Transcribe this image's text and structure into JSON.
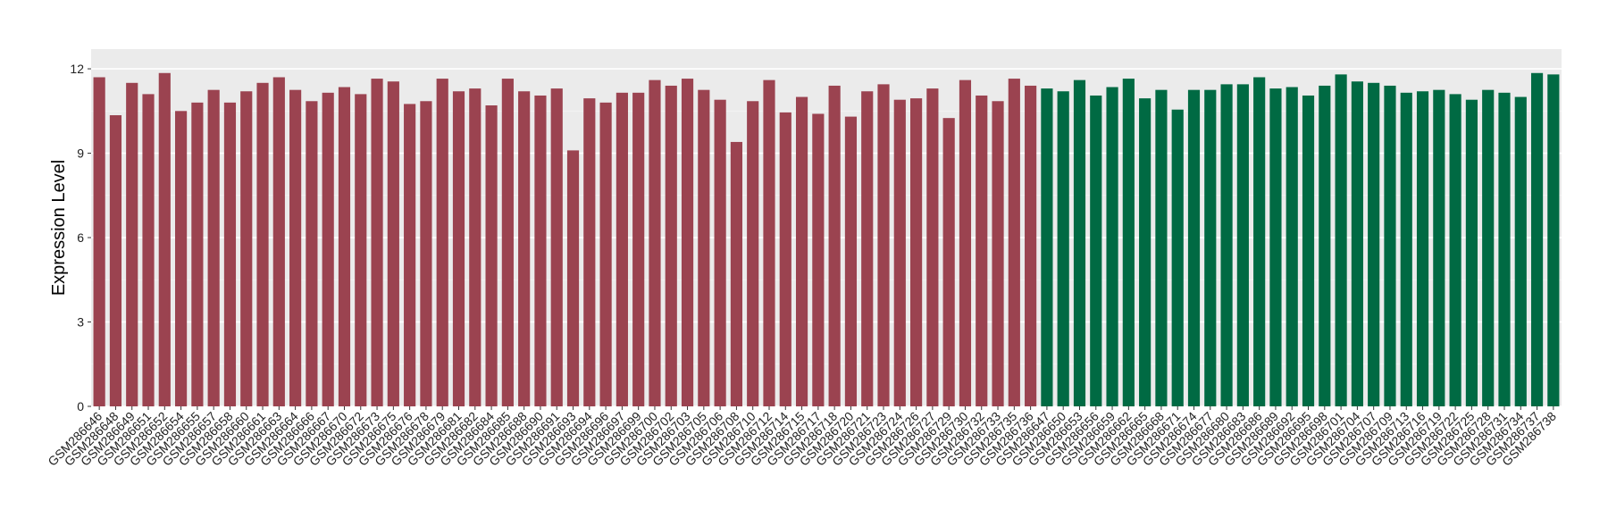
{
  "chart_data": {
    "type": "bar",
    "title": "",
    "xlabel": "",
    "ylabel": "Expression Level",
    "ylim": [
      0,
      12.7
    ],
    "yticks": [
      0,
      3,
      6,
      9,
      12
    ],
    "grid": true,
    "legend": "none",
    "colors": {
      "panel_background": "#EBEBEB",
      "grid_major": "#FFFFFF",
      "group_1": "#9B4350",
      "group_2": "#006A43"
    },
    "categories": [
      "GSM286646",
      "GSM286648",
      "GSM286649",
      "GSM286651",
      "GSM286652",
      "GSM286654",
      "GSM286655",
      "GSM286657",
      "GSM286658",
      "GSM286660",
      "GSM286661",
      "GSM286663",
      "GSM286664",
      "GSM286666",
      "GSM286667",
      "GSM286670",
      "GSM286672",
      "GSM286673",
      "GSM286675",
      "GSM286676",
      "GSM286678",
      "GSM286679",
      "GSM286681",
      "GSM286682",
      "GSM286684",
      "GSM286685",
      "GSM286688",
      "GSM286690",
      "GSM286691",
      "GSM286693",
      "GSM286694",
      "GSM286696",
      "GSM286697",
      "GSM286699",
      "GSM286700",
      "GSM286702",
      "GSM286703",
      "GSM286705",
      "GSM286706",
      "GSM286708",
      "GSM286710",
      "GSM286712",
      "GSM286714",
      "GSM286715",
      "GSM286717",
      "GSM286718",
      "GSM286720",
      "GSM286721",
      "GSM286723",
      "GSM286724",
      "GSM286726",
      "GSM286727",
      "GSM286729",
      "GSM286730",
      "GSM286732",
      "GSM286733",
      "GSM286735",
      "GSM286736",
      "GSM286647",
      "GSM286650",
      "GSM286653",
      "GSM286656",
      "GSM286659",
      "GSM286662",
      "GSM286665",
      "GSM286668",
      "GSM286671",
      "GSM286674",
      "GSM286677",
      "GSM286680",
      "GSM286683",
      "GSM286686",
      "GSM286689",
      "GSM286692",
      "GSM286695",
      "GSM286698",
      "GSM286701",
      "GSM286704",
      "GSM286707",
      "GSM286709",
      "GSM286713",
      "GSM286716",
      "GSM286719",
      "GSM286722",
      "GSM286725",
      "GSM286728",
      "GSM286731",
      "GSM286734",
      "GSM286737",
      "GSM286738"
    ],
    "values": [
      11.7,
      10.35,
      11.5,
      11.1,
      11.85,
      10.5,
      10.8,
      11.25,
      10.8,
      11.2,
      11.5,
      11.7,
      11.25,
      10.85,
      11.15,
      11.35,
      11.1,
      11.65,
      11.55,
      10.75,
      10.85,
      11.65,
      11.2,
      11.3,
      10.7,
      11.65,
      11.2,
      11.05,
      11.3,
      9.1,
      10.95,
      10.8,
      11.15,
      11.15,
      11.6,
      11.4,
      11.65,
      11.25,
      10.9,
      9.4,
      10.85,
      11.6,
      10.45,
      11.0,
      10.4,
      11.4,
      10.3,
      11.2,
      11.45,
      10.9,
      10.95,
      11.3,
      10.25,
      11.6,
      11.05,
      10.85,
      11.65,
      11.4,
      11.3,
      11.2,
      11.6,
      11.05,
      11.35,
      11.65,
      10.95,
      11.25,
      10.55,
      11.25,
      11.25,
      11.45,
      11.45,
      11.7,
      11.3,
      11.35,
      11.05,
      11.4,
      11.8,
      11.55,
      11.5,
      11.4,
      11.15,
      11.2,
      11.25,
      11.1,
      10.9,
      11.25,
      11.15,
      11.0,
      11.85,
      11.8
    ],
    "groups": [
      1,
      1,
      1,
      1,
      1,
      1,
      1,
      1,
      1,
      1,
      1,
      1,
      1,
      1,
      1,
      1,
      1,
      1,
      1,
      1,
      1,
      1,
      1,
      1,
      1,
      1,
      1,
      1,
      1,
      1,
      1,
      1,
      1,
      1,
      1,
      1,
      1,
      1,
      1,
      1,
      1,
      1,
      1,
      1,
      1,
      1,
      1,
      1,
      1,
      1,
      1,
      1,
      1,
      1,
      1,
      1,
      1,
      1,
      2,
      2,
      2,
      2,
      2,
      2,
      2,
      2,
      2,
      2,
      2,
      2,
      2,
      2,
      2,
      2,
      2,
      2,
      2,
      2,
      2,
      2,
      2,
      2,
      2,
      2,
      2,
      2,
      2,
      2,
      2,
      2
    ]
  }
}
